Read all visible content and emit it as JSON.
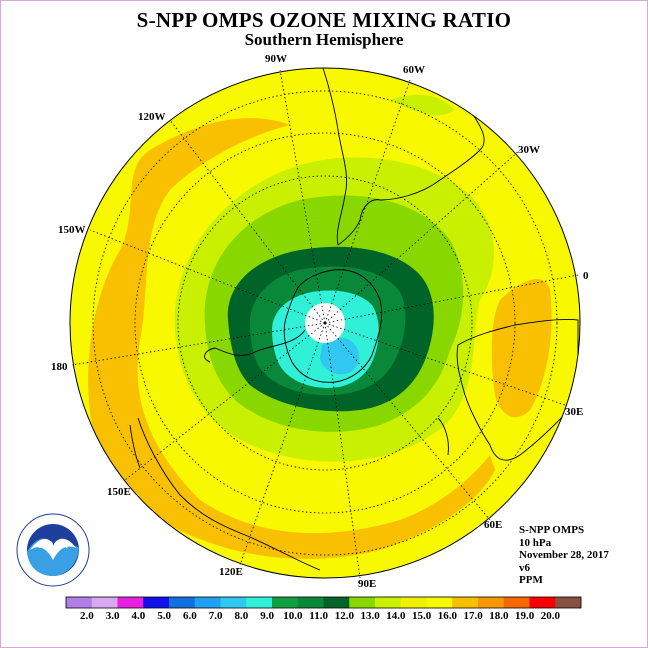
{
  "title": "S-NPP OMPS OZONE MIXING RATIO",
  "subtitle": "Southern Hemisphere",
  "longitude_labels": {
    "w90": "90W",
    "w60": "60W",
    "w30": "30W",
    "w120": "120W",
    "w150": "150W",
    "e0": "0",
    "l180": "180",
    "e30": "30E",
    "e60": "60E",
    "e90": "90E",
    "e120": "120E",
    "e150": "150E"
  },
  "info": {
    "instrument": "S-NPP OMPS",
    "level": "10 hPa",
    "date": "November 28, 2017",
    "version": "v6",
    "units": "PPM"
  },
  "logo_text": "NOAA",
  "colorbar": {
    "colors": [
      "#b07ee8",
      "#d8a8f0",
      "#e820e0",
      "#1010e8",
      "#1070e0",
      "#20a0f0",
      "#30c8f0",
      "#30f0d8",
      "#10a040",
      "#088838",
      "#006428",
      "#88d800",
      "#c8f000",
      "#f0f000",
      "#f8f800",
      "#f8c000",
      "#f89800",
      "#f86800",
      "#f80000",
      "#885040"
    ],
    "tick_labels": [
      "2.0",
      "3.0",
      "4.0",
      "5.0",
      "6.0",
      "7.0",
      "8.0",
      "9.0",
      "10.0",
      "11.0",
      "12.0",
      "13.0",
      "14.0",
      "15.0",
      "16.0",
      "17.0",
      "18.0",
      "19.0",
      "20.0"
    ]
  },
  "map_colors": {
    "yellow": "#f8f800",
    "orange": "#f8c000",
    "light_green": "#c8f000",
    "mid_green": "#88d800",
    "dark_green": "#088838",
    "darkest_green": "#006428",
    "cyan": "#30f0d8",
    "light_blue": "#30c8f0"
  }
}
